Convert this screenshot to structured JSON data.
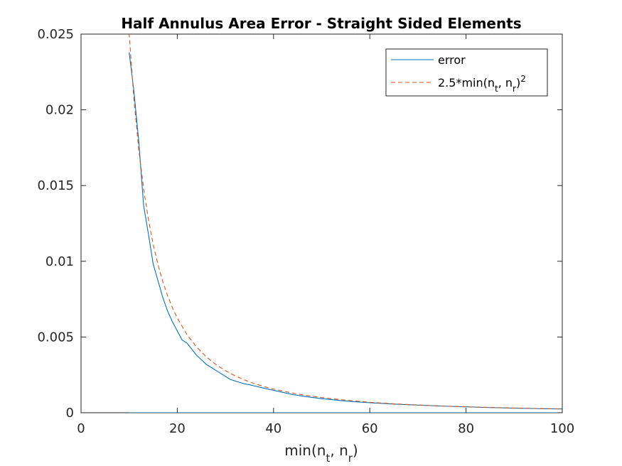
{
  "chart_data": {
    "type": "line",
    "title": "Half Annulus Area Error - Straight Sided Elements",
    "xlabel": {
      "base": "min(n",
      "sub1": "t",
      "mid": ", n",
      "sub2": "r",
      "end": ")"
    },
    "ylabel": "",
    "xlim": [
      0,
      100
    ],
    "ylim": [
      0,
      0.025
    ],
    "xticks": [
      0,
      20,
      40,
      60,
      80,
      100
    ],
    "yticks": [
      0,
      0.005,
      0.01,
      0.015,
      0.02,
      0.025
    ],
    "xtick_labels": [
      "0",
      "20",
      "40",
      "60",
      "80",
      "100"
    ],
    "ytick_labels": [
      "0",
      "0.005",
      "0.01",
      "0.015",
      "0.02",
      "0.025"
    ],
    "grid": false,
    "legend_position": "top-right",
    "legend": {
      "error": "error",
      "fit": {
        "base": "2.5*min(n",
        "sub1": "t",
        "mid": ", n",
        "sub2": "r",
        "end": ")",
        "sup": "2"
      }
    },
    "series": [
      {
        "name": "error",
        "color": "#0072BD",
        "style": "solid",
        "x": [
          10,
          11,
          12,
          13,
          14,
          15,
          16,
          17,
          18,
          19,
          20,
          21,
          22,
          23,
          24,
          25,
          26,
          27,
          28,
          29,
          30,
          31,
          32,
          33,
          34,
          35,
          36,
          38,
          40,
          42,
          44,
          46,
          48,
          50,
          55,
          60,
          65,
          70,
          75,
          80,
          85,
          90,
          95,
          100,
          100,
          10
        ],
        "y": [
          0.0238,
          0.0212,
          0.0179,
          0.0137,
          0.0118,
          0.0098,
          0.0087,
          0.0076,
          0.0067,
          0.006,
          0.0054,
          0.0048,
          0.0046,
          0.0042,
          0.0038,
          0.0035,
          0.0032,
          0.003,
          0.0028,
          0.0026,
          0.0024,
          0.0022,
          0.0021,
          0.002,
          0.0019,
          0.00185,
          0.00177,
          0.00162,
          0.00148,
          0.00134,
          0.0012,
          0.0011,
          0.00101,
          0.00093,
          0.00077,
          0.00066,
          0.00057,
          0.0005,
          0.00044,
          0.00039,
          0.00034,
          0.0003,
          0.00027,
          0.00025,
          0,
          0
        ]
      },
      {
        "name": "2.5*min(n_t, n_r)^2",
        "color": "#D95319",
        "style": "dashed",
        "x": [
          9.8,
          10,
          11,
          12,
          13,
          14,
          15,
          16,
          17,
          18,
          19,
          20,
          22,
          24,
          26,
          28,
          30,
          32,
          34,
          36,
          38,
          40,
          45,
          50,
          55,
          60,
          65,
          70,
          75,
          80,
          85,
          90,
          95,
          100
        ],
        "y": [
          0.026,
          0.025,
          0.02066,
          0.01736,
          0.01479,
          0.01276,
          0.01111,
          0.00977,
          0.00865,
          0.00772,
          0.00693,
          0.00625,
          0.00517,
          0.00434,
          0.0037,
          0.00319,
          0.00278,
          0.00244,
          0.00216,
          0.00193,
          0.00173,
          0.00156,
          0.00123,
          0.001,
          0.00083,
          0.00069,
          0.00059,
          0.00051,
          0.00044,
          0.00039,
          0.00035,
          0.00031,
          0.00028,
          0.00025
        ]
      }
    ]
  }
}
